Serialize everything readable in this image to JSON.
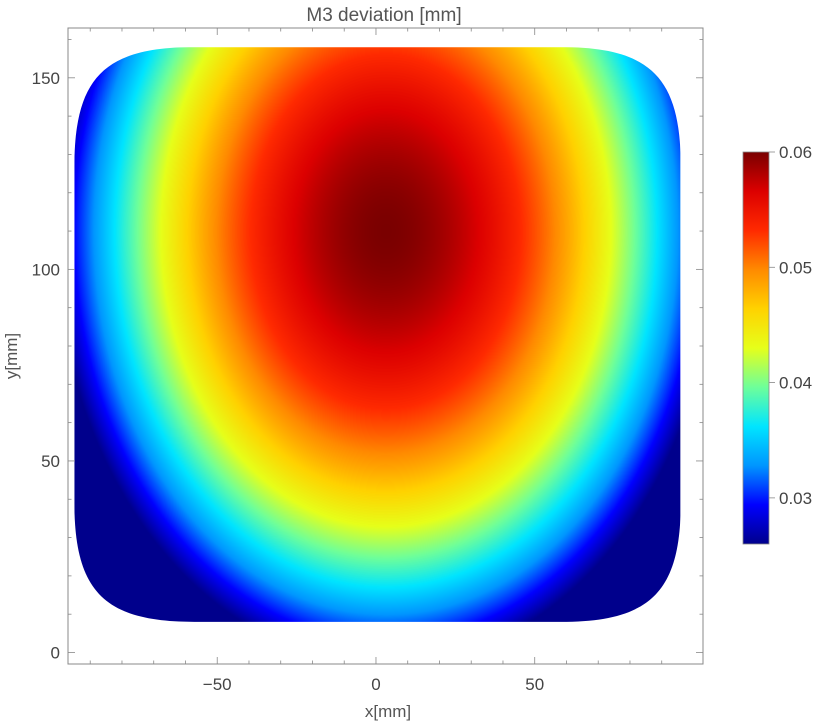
{
  "chart_data": {
    "type": "heatmap",
    "title": "M3 deviation [mm]",
    "xlabel": "x[mm]",
    "ylabel": "y[mm]",
    "xlim": [
      -97,
      103
    ],
    "ylim": [
      -3,
      163
    ],
    "x_ticks": [
      -50,
      0,
      50
    ],
    "y_ticks": [
      0,
      50,
      100,
      150
    ],
    "x_tick_labels": [
      "−50",
      "0",
      "50"
    ],
    "y_tick_labels": [
      "0",
      "50",
      "100",
      "150"
    ],
    "region": {
      "x_min": -95,
      "x_max": 96,
      "y_min": 8,
      "y_max": 158,
      "shape": "rounded-square"
    },
    "field": {
      "peak_x": 3,
      "peak_y": 110,
      "peak_value": 0.06,
      "min_value": 0.026
    },
    "colorbar": {
      "min": 0.026,
      "max": 0.06,
      "ticks": [
        0.03,
        0.04,
        0.05,
        0.06
      ],
      "tick_labels": [
        "0.03",
        "0.04",
        "0.05",
        "0.06"
      ],
      "colormap": "rainbow",
      "colors": [
        "#00008c",
        "#0000ff",
        "#0096ff",
        "#00e5ff",
        "#6eff9a",
        "#e6ff1a",
        "#ffd200",
        "#ff8a00",
        "#ff2a00",
        "#dc0000",
        "#7a0000"
      ]
    },
    "grid": false,
    "legend": "right"
  }
}
